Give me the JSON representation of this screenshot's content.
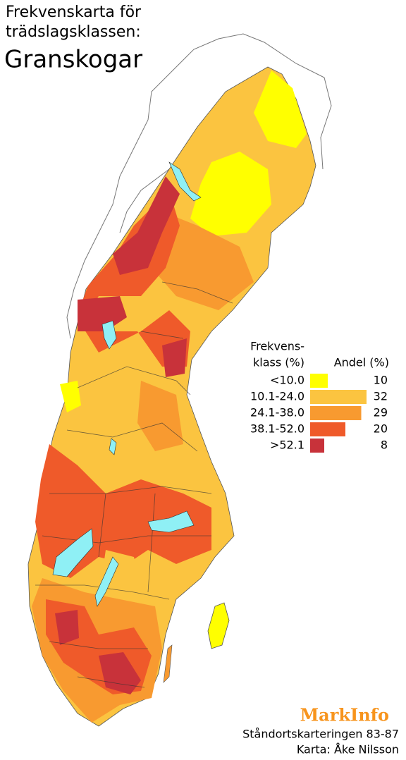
{
  "header": {
    "line1": "Frekvenskarta för",
    "line2": "trädslagsklassen:",
    "title": "Granskogar"
  },
  "legend": {
    "class_header_line1": "Frekvens-",
    "class_header_line2": "klass (%)",
    "share_header": "Andel (%)",
    "items": [
      {
        "label": "<10.0",
        "color": "#ffff00",
        "share": 10
      },
      {
        "label": "10.1-24.0",
        "color": "#fbc440",
        "share": 32
      },
      {
        "label": "24.1-38.0",
        "color": "#f89a30",
        "share": 29
      },
      {
        "label": "38.1-52.0",
        "color": "#ef5a2a",
        "share": 20
      },
      {
        "label": ">52.1",
        "color": "#c8323a",
        "share": 8
      }
    ]
  },
  "footer": {
    "brand": "MarkInfo",
    "source": "Ståndortskarteringen 83-87",
    "credit": "Karta: Åke Nilsson"
  }
}
